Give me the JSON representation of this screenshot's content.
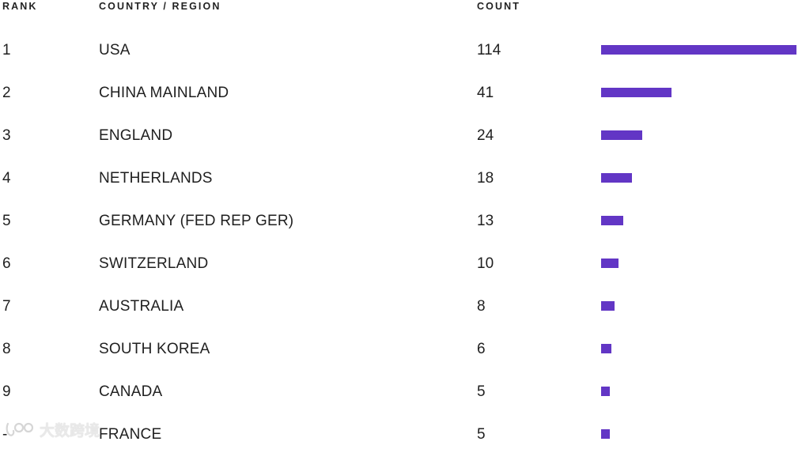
{
  "header": {
    "rank": "RANK",
    "country": "COUNTRY / REGION",
    "count": "COUNT"
  },
  "rows": [
    {
      "rank": "1",
      "country": "USA",
      "count": "114",
      "value": 114
    },
    {
      "rank": "2",
      "country": "CHINA MAINLAND",
      "count": "41",
      "value": 41
    },
    {
      "rank": "3",
      "country": "ENGLAND",
      "count": "24",
      "value": 24
    },
    {
      "rank": "4",
      "country": "NETHERLANDS",
      "count": "18",
      "value": 18
    },
    {
      "rank": "5",
      "country": "GERMANY (FED REP GER)",
      "count": "13",
      "value": 13
    },
    {
      "rank": "6",
      "country": "SWITZERLAND",
      "count": "10",
      "value": 10
    },
    {
      "rank": "7",
      "country": "AUSTRALIA",
      "count": "8",
      "value": 8
    },
    {
      "rank": "8",
      "country": "SOUTH KOREA",
      "count": "6",
      "value": 6
    },
    {
      "rank": "9",
      "country": "CANADA",
      "count": "5",
      "value": 5
    },
    {
      "rank": "-",
      "country": "FRANCE",
      "count": "5",
      "value": 5
    }
  ],
  "bar_color": "#6236c5",
  "max_value": 114,
  "watermark": {
    "text": "大数跨境",
    "icon": "watermark-logo-icon"
  }
}
